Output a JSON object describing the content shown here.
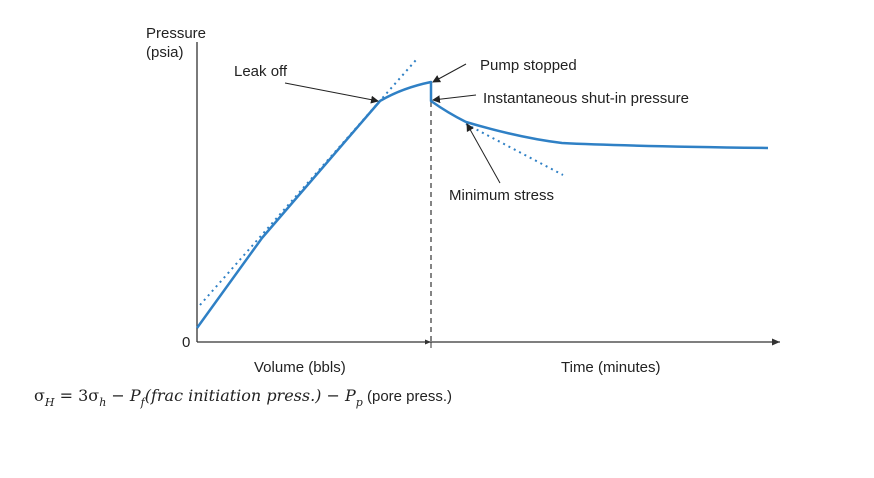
{
  "diagram": {
    "y_axis_label_line1": "Pressure",
    "y_axis_label_line2": "(psia)",
    "origin_label": "0",
    "x_axis_label_left": "Volume (bbls)",
    "x_axis_label_right": "Time (minutes)",
    "annotations": {
      "leak_off": "Leak off",
      "pump_stopped": "Pump stopped",
      "isip": "Instantaneous shut-in pressure",
      "min_stress": "Minimum stress"
    },
    "colors": {
      "curve": "#2f80c5",
      "tangent_dots": "#2f80c5",
      "axes": "#333333",
      "arrows": "#222222"
    }
  },
  "formula": {
    "sigma_H": "σ",
    "sub_H": "H",
    "eq": " = 3σ",
    "sub_h": "h",
    "minus1": " − ",
    "P_f": "P",
    "sub_f": "f",
    "frac_text": "(frac initiation press.)",
    "minus2": " − ",
    "P_p": "P",
    "sub_p": "p",
    "pore_text": " (pore press.)"
  }
}
